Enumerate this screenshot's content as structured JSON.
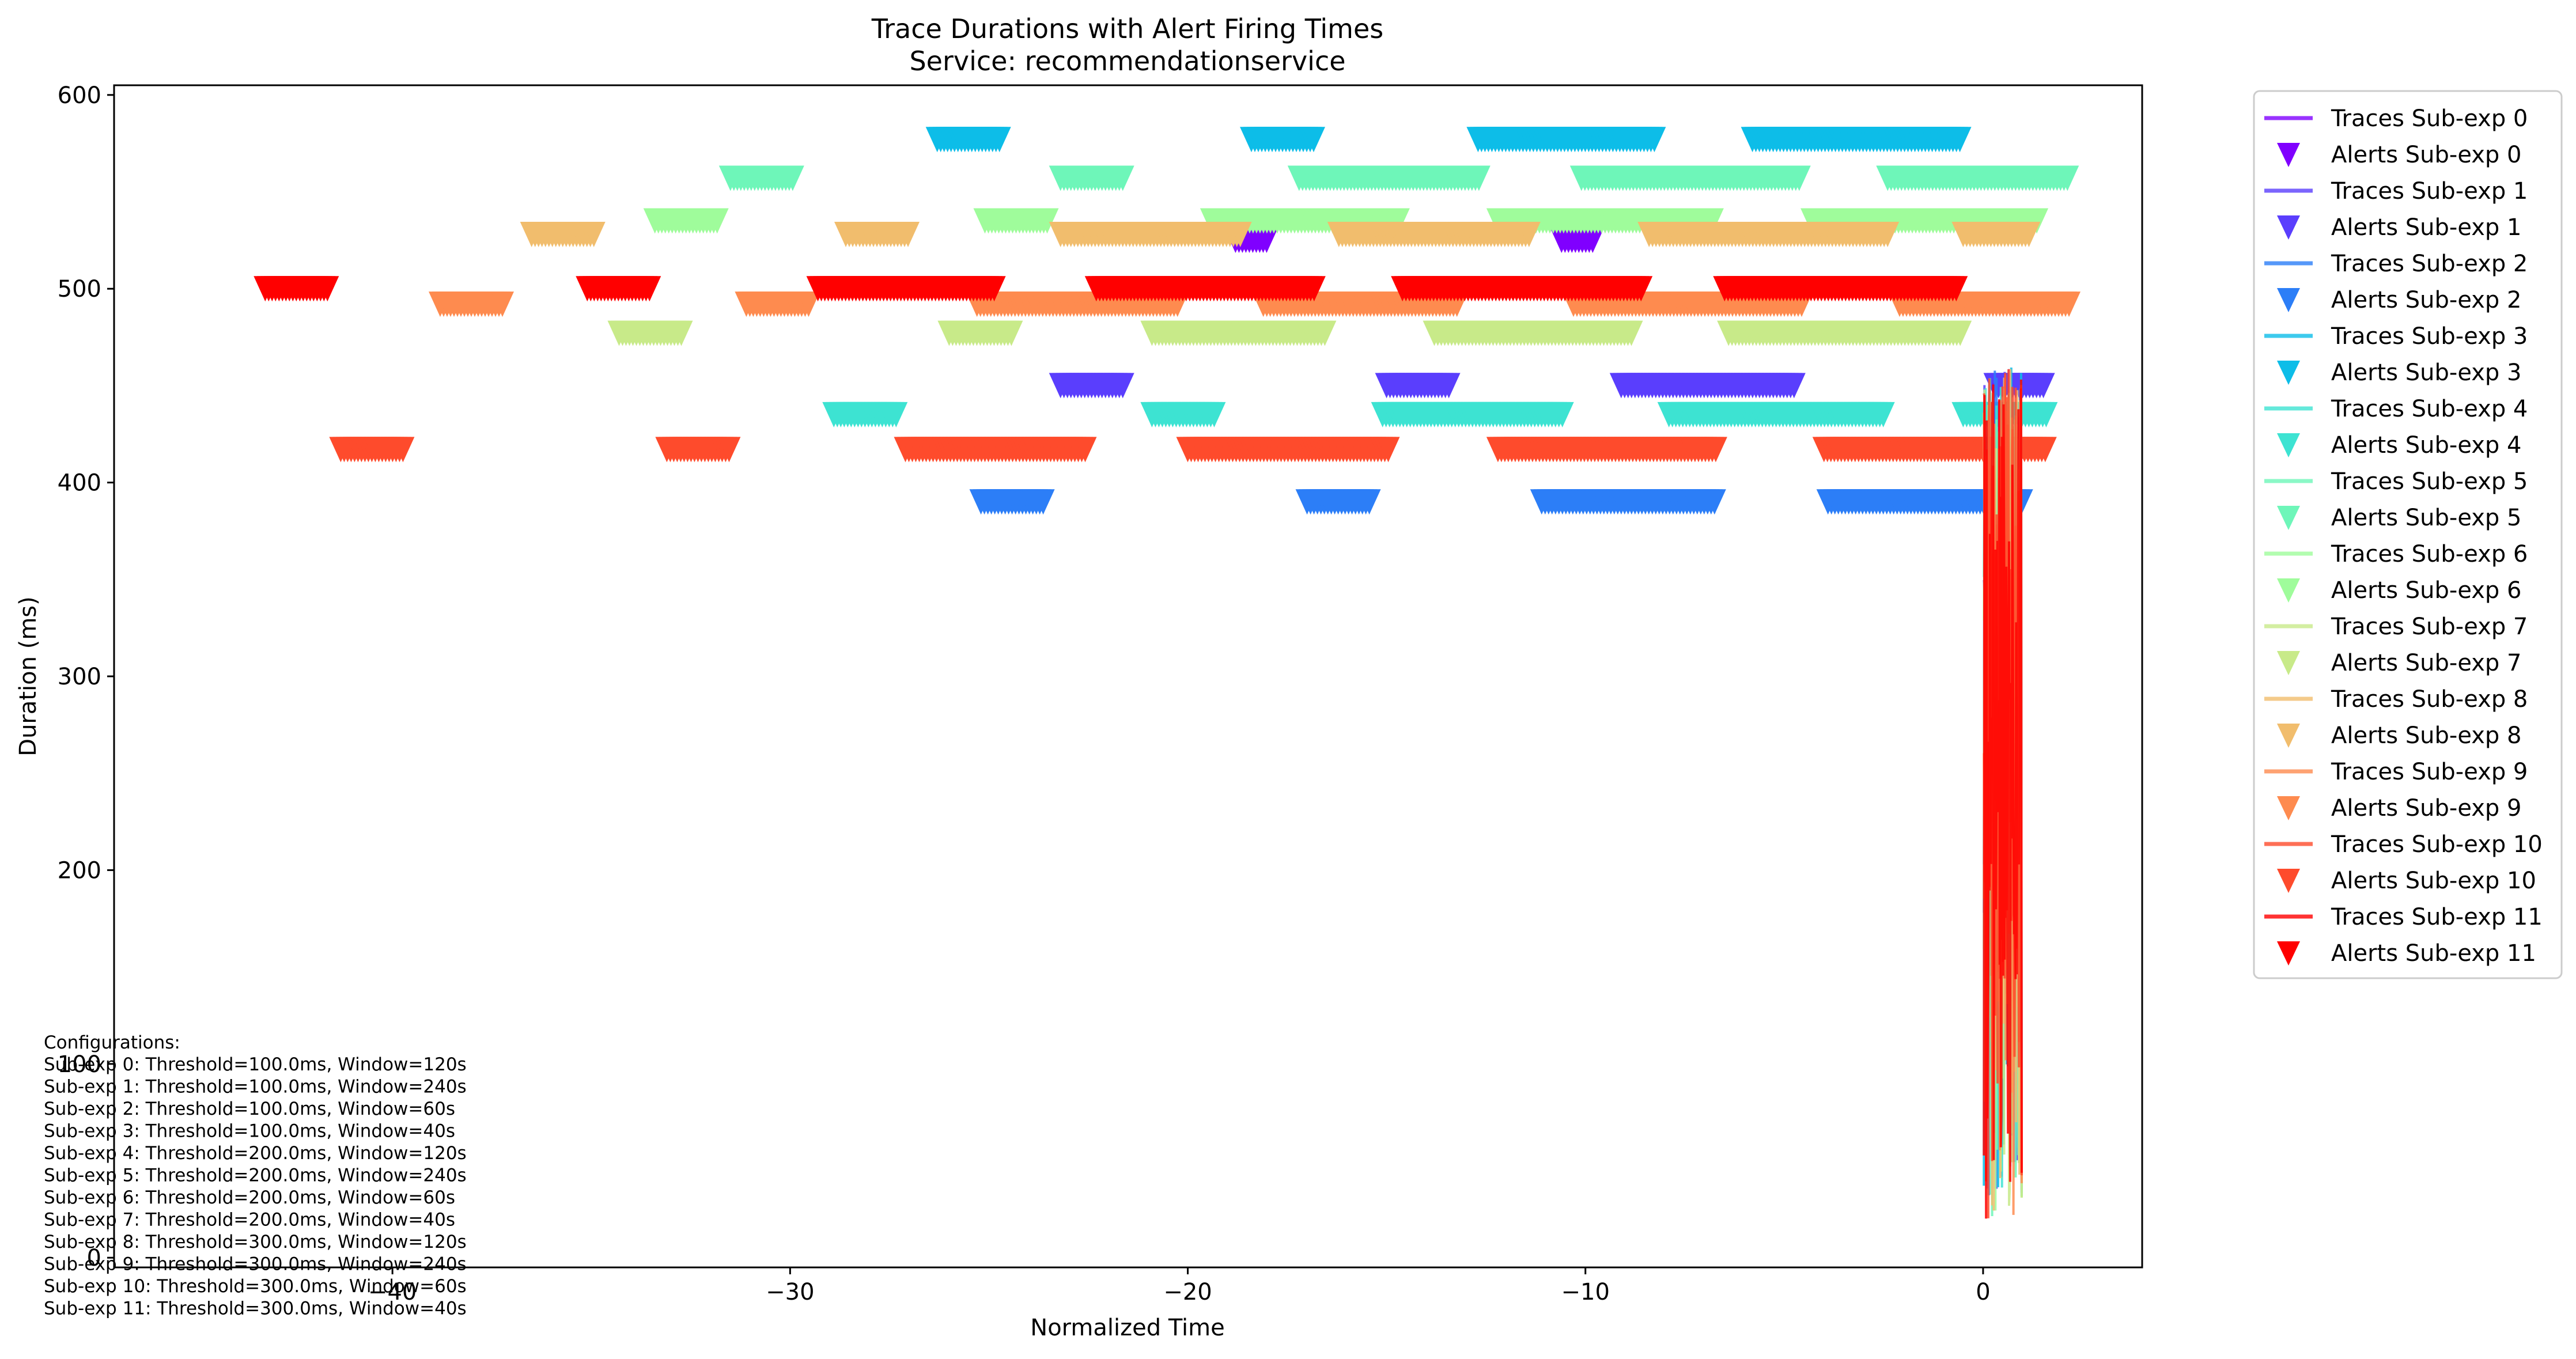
{
  "chart_data": {
    "type": "line",
    "title": "Trace Durations with Alert Firing Times",
    "subtitle": "Service: recommendationservice",
    "xlabel": "Normalized Time",
    "ylabel": "Duration (ms)",
    "xlim": [
      -47,
      4
    ],
    "ylim": [
      -5,
      605
    ],
    "xticks": [
      -40,
      -30,
      -20,
      -10,
      0
    ],
    "xtick_labels": [
      "−40",
      "−30",
      "−20",
      "−10",
      "0"
    ],
    "yticks": [
      0,
      100,
      200,
      300,
      400,
      500,
      600
    ],
    "ytick_labels": [
      "0",
      "100",
      "200",
      "300",
      "400",
      "500",
      "600"
    ],
    "grid": false,
    "legend_position": "outside-right",
    "series": [
      {
        "id": 0,
        "color": "#8000ff",
        "alert_y": 525,
        "alert_times": [
          -18.8,
          -18.0,
          -10.6,
          -9.8
        ],
        "trace_name": "Traces Sub-exp 0",
        "alert_name": "Alerts Sub-exp 0"
      },
      {
        "id": 1,
        "color": "#5a3efd",
        "alert_y": 450,
        "alert_times": [
          -23.2,
          -21.6,
          -15.0,
          -13.4,
          -9.1,
          -4.7,
          0.3,
          1.6
        ],
        "trace_name": "Traces Sub-exp 1",
        "alert_name": "Alerts Sub-exp 1"
      },
      {
        "id": 2,
        "color": "#2c7ef7",
        "alert_y": 390,
        "alert_times": [
          -25.2,
          -23.6,
          -17.0,
          -15.4,
          -11.1,
          -6.7,
          -3.9,
          1.0
        ],
        "trace_name": "Traces Sub-exp 2",
        "alert_name": "Alerts Sub-exp 2"
      },
      {
        "id": 3,
        "color": "#0dbde8",
        "alert_y": 577,
        "alert_times": [
          -26.3,
          -24.7,
          -18.4,
          -16.8,
          -12.7,
          -8.2,
          -5.8,
          -0.5
        ],
        "trace_name": "Traces Sub-exp 3",
        "alert_name": "Alerts Sub-exp 3"
      },
      {
        "id": 4,
        "color": "#3de3d2",
        "alert_y": 435,
        "alert_times": [
          -28.9,
          -27.3,
          -20.9,
          -19.3,
          -15.1,
          -10.5,
          -7.9,
          -2.5,
          -0.5,
          1.6
        ],
        "trace_name": "Traces Sub-exp 4",
        "alert_name": "Alerts Sub-exp 4"
      },
      {
        "id": 5,
        "color": "#6ef6b9",
        "alert_y": 557,
        "alert_times": [
          -31.5,
          -29.9,
          -23.2,
          -21.6,
          -17.2,
          -12.6,
          -10.1,
          -4.6,
          -2.4,
          2.2
        ],
        "trace_name": "Traces Sub-exp 5",
        "alert_name": "Alerts Sub-exp 5"
      },
      {
        "id": 6,
        "color": "#9ffc9b",
        "alert_y": 535,
        "alert_times": [
          -33.4,
          -31.8,
          -25.1,
          -23.5,
          -19.4,
          -14.7,
          -12.2,
          -6.8,
          -4.3,
          1.4
        ],
        "trace_name": "Traces Sub-exp 6",
        "alert_name": "Alerts Sub-exp 6"
      },
      {
        "id": 7,
        "color": "#c8ea89",
        "alert_y": 477,
        "alert_times": [
          -34.3,
          -32.7,
          -26.0,
          -24.4,
          -20.9,
          -16.5,
          -13.8,
          -8.8,
          -6.4,
          -0.5
        ],
        "trace_name": "Traces Sub-exp 7",
        "alert_name": "Alerts Sub-exp 7"
      },
      {
        "id": 8,
        "color": "#f1bd6d",
        "alert_y": 528,
        "alert_times": [
          -36.5,
          -34.9,
          -28.6,
          -27.0,
          -23.2,
          -18.6,
          -16.2,
          -11.4,
          -8.4,
          -2.4,
          -0.5,
          1.2
        ],
        "trace_name": "Traces Sub-exp 8",
        "alert_name": "Alerts Sub-exp 8"
      },
      {
        "id": 9,
        "color": "#fe8b4f",
        "alert_y": 492,
        "alert_times": [
          -38.8,
          -37.2,
          -31.1,
          -29.5,
          -25.3,
          -20.2,
          -18.1,
          -13.2,
          -10.3,
          -4.5,
          -2.1,
          2.2
        ],
        "trace_name": "Traces Sub-exp 9",
        "alert_name": "Alerts Sub-exp 9"
      },
      {
        "id": 10,
        "color": "#fe4b2c",
        "alert_y": 417,
        "alert_times": [
          -41.3,
          -39.7,
          -33.1,
          -31.5,
          -27.1,
          -22.5,
          -20.0,
          -14.9,
          -12.2,
          -6.7,
          -4.0,
          1.6
        ],
        "trace_name": "Traces Sub-exp 10",
        "alert_name": "Alerts Sub-exp 10"
      },
      {
        "id": 11,
        "color": "#ff0000",
        "alert_y": 500,
        "alert_times": [
          -43.2,
          -41.6,
          -35.1,
          -33.5,
          -29.3,
          -24.8,
          -22.3,
          -16.8,
          -14.6,
          -8.6,
          -6.5,
          -0.6
        ],
        "trace_name": "Traces Sub-exp 11",
        "alert_name": "Alerts Sub-exp 11"
      }
    ],
    "configurations_title": "Configurations:",
    "configurations": [
      "Sub-exp 0: Threshold=100.0ms, Window=120s",
      "Sub-exp 1: Threshold=100.0ms, Window=240s",
      "Sub-exp 2: Threshold=100.0ms, Window=60s",
      "Sub-exp 3: Threshold=100.0ms, Window=40s",
      "Sub-exp 4: Threshold=200.0ms, Window=120s",
      "Sub-exp 5: Threshold=200.0ms, Window=240s",
      "Sub-exp 6: Threshold=200.0ms, Window=60s",
      "Sub-exp 7: Threshold=200.0ms, Window=40s",
      "Sub-exp 8: Threshold=300.0ms, Window=120s",
      "Sub-exp 9: Threshold=300.0ms, Window=240s",
      "Sub-exp 10: Threshold=300.0ms, Window=60s",
      "Sub-exp 11: Threshold=300.0ms, Window=40s"
    ]
  }
}
